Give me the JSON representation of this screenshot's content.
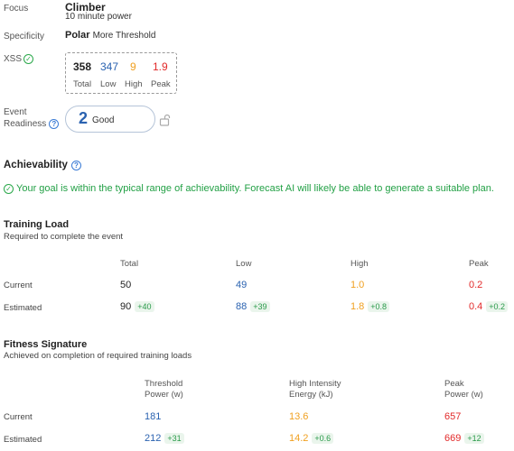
{
  "focus": {
    "label": "Focus",
    "value": "Climber",
    "sub": "10 minute power"
  },
  "specificity": {
    "label": "Specificity",
    "value": "Polar",
    "sub": "More Threshold"
  },
  "xss": {
    "label": "XSS",
    "total": "358",
    "low": "347",
    "high": "9",
    "peak": "1.9",
    "cap_total": "Total",
    "cap_low": "Low",
    "cap_high": "High",
    "cap_peak": "Peak"
  },
  "event_readiness": {
    "label_line1": "Event",
    "label_line2": "Readiness",
    "value": "2",
    "text": "Good"
  },
  "achievability": {
    "title": "Achievability",
    "message": "Your goal is within the typical range of achievability. Forecast AI will likely be able to generate a suitable plan."
  },
  "training_load": {
    "title": "Training Load",
    "subtitle": "Required to complete the event",
    "headers": [
      "Total",
      "Low",
      "High",
      "Peak"
    ],
    "current_label": "Current",
    "estimated_label": "Estimated",
    "current": [
      "50",
      "49",
      "1.0",
      "0.2"
    ],
    "estimated": [
      "90",
      "88",
      "1.8",
      "0.4"
    ],
    "deltas": [
      "+40",
      "+39",
      "+0.8",
      "+0.2"
    ]
  },
  "fitness_signature": {
    "title": "Fitness Signature",
    "subtitle": "Achieved on completion of required training loads",
    "h1a": "Threshold",
    "h1b": "Power (w)",
    "h2a": "High Intensity",
    "h2b": "Energy (kJ)",
    "h3a": "Peak",
    "h3b": "Power (w)",
    "current_label": "Current",
    "estimated_label": "Estimated",
    "current": [
      "181",
      "13.6",
      "657"
    ],
    "estimated": [
      "212",
      "14.2",
      "669"
    ],
    "deltas": [
      "+31",
      "+0.6",
      "+12"
    ]
  },
  "colors": {
    "low": "#2a62b0",
    "high": "#f0a020",
    "peak": "#e22a2a",
    "ok": "#22a045"
  }
}
